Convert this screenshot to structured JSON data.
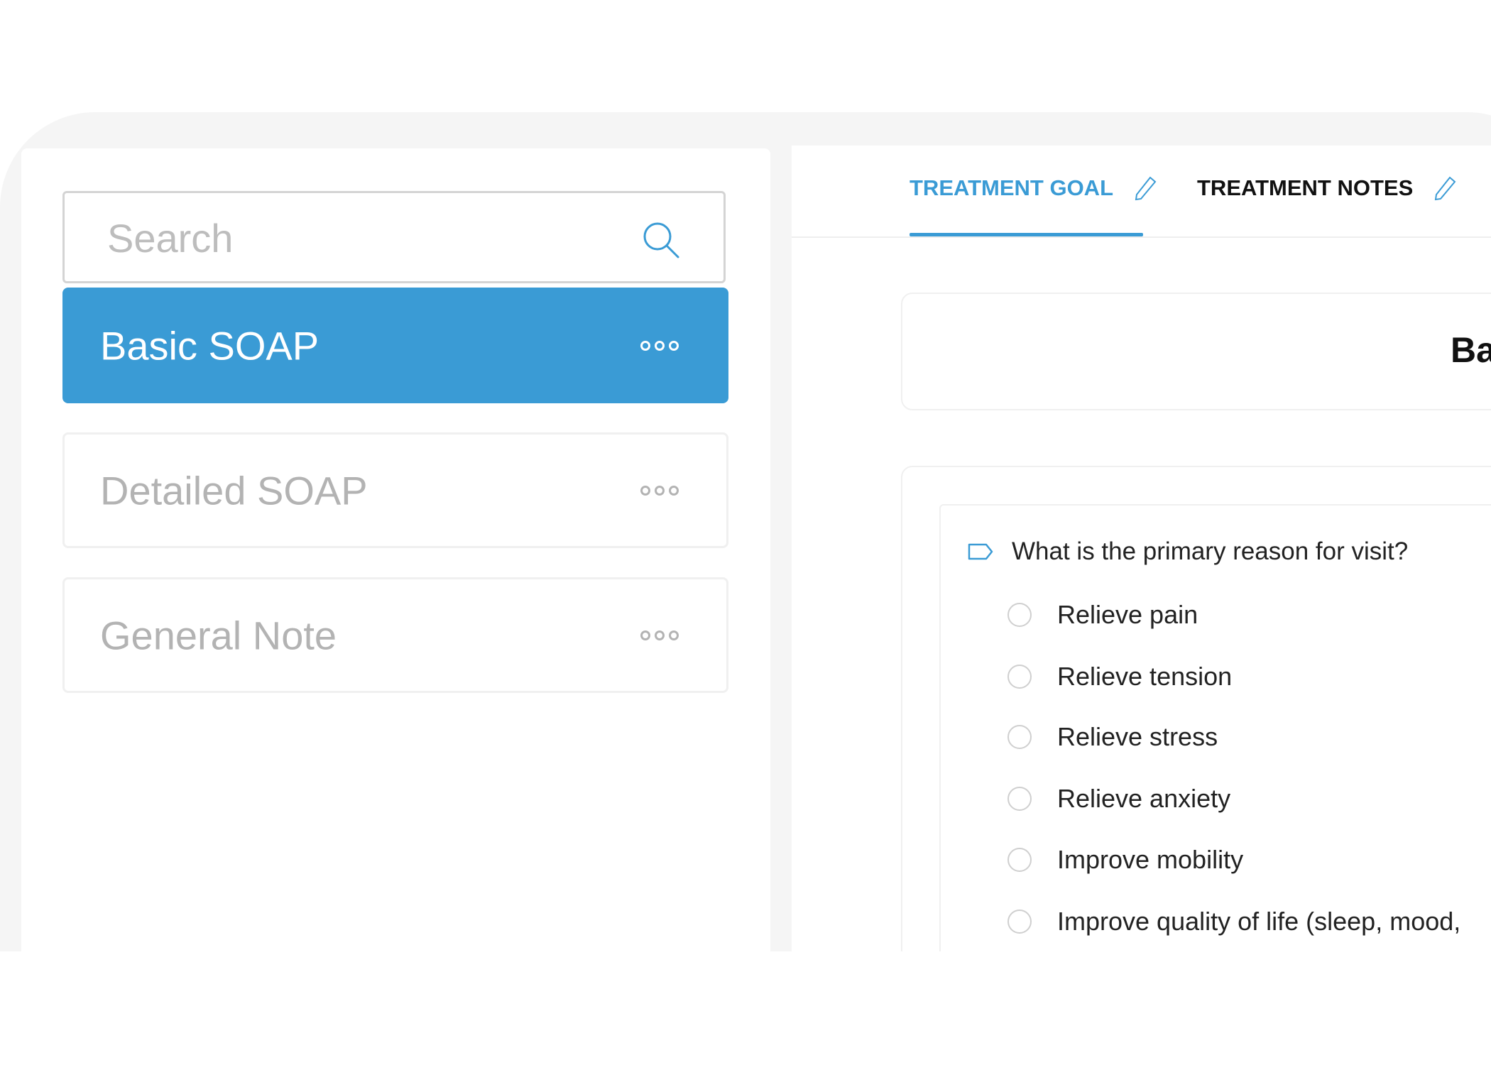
{
  "sidebar": {
    "search_placeholder": "Search",
    "templates": [
      {
        "label": "Basic SOAP",
        "active": true
      },
      {
        "label": "Detailed SOAP",
        "active": false
      },
      {
        "label": "General Note",
        "active": false
      }
    ]
  },
  "main": {
    "tabs": [
      {
        "label": "TREATMENT GOAL",
        "active": true
      },
      {
        "label": "TREATMENT NOTES",
        "active": false
      }
    ],
    "form_title": "Ba",
    "question": "What is the primary reason for visit?",
    "options": [
      "Relieve pain",
      "Relieve tension",
      "Relieve stress",
      "Relieve anxiety",
      "Improve mobility",
      "Improve quality of life (sleep, mood,"
    ]
  },
  "colors": {
    "accent": "#3a9bd5",
    "background": "#f5f5f5"
  }
}
